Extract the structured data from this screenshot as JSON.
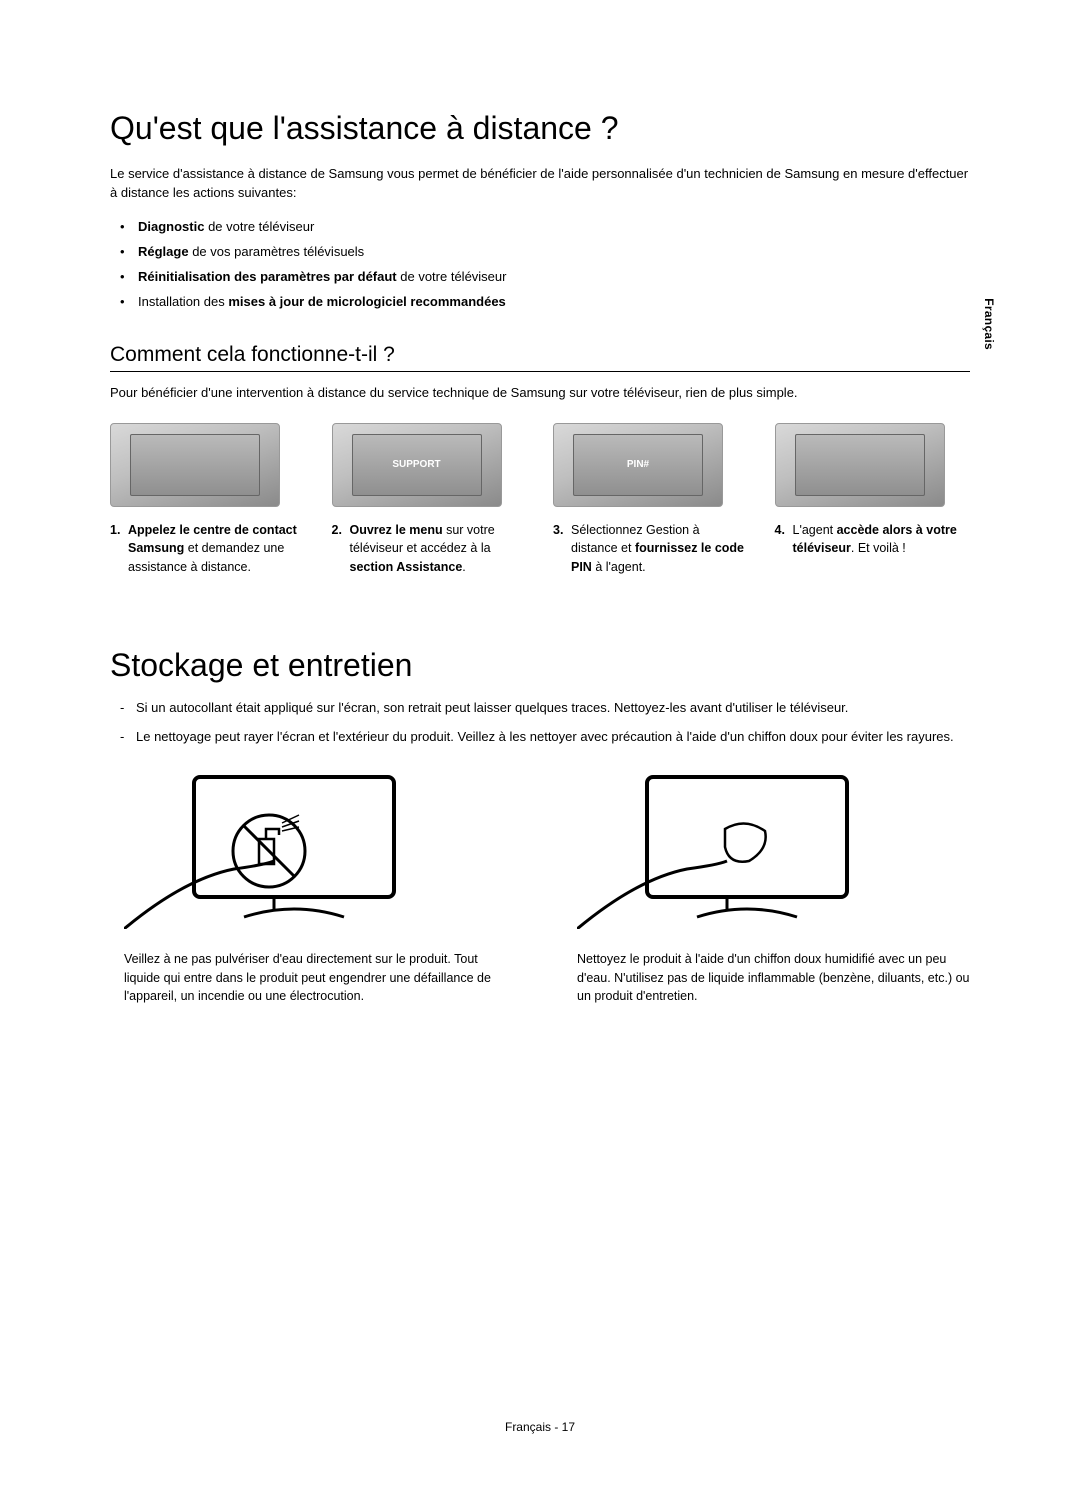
{
  "page": {
    "language_tab": "Français",
    "footer": "Français - 17"
  },
  "section1": {
    "title": "Qu'est que l'assistance à distance ?",
    "intro": "Le service d'assistance à distance de Samsung vous permet de bénéficier de l'aide personnalisée d'un technicien de Samsung en mesure d'effectuer à distance les actions suivantes:",
    "bullets": [
      {
        "bold": "Diagnostic",
        "rest": " de votre téléviseur"
      },
      {
        "bold": "Réglage",
        "rest": " de vos paramètres télévisuels"
      },
      {
        "bold": "Réinitialisation des paramètres par défaut",
        "rest": " de votre téléviseur"
      },
      {
        "prefix": "Installation des ",
        "bold": "mises à jour de micrologiciel recommandées",
        "rest": ""
      }
    ],
    "sub_title": "Comment cela fonctionne-t-il ?",
    "sub_intro": "Pour bénéficier d'une intervention à distance du service technique de Samsung sur votre téléviseur, rien de plus simple.",
    "steps": [
      {
        "num": "1.",
        "img_label": "laptop-call-icon",
        "text_parts": [
          {
            "bold": true,
            "t": "Appelez le centre de contact Samsung"
          },
          {
            "bold": false,
            "t": " et demandez une assistance à distance."
          }
        ]
      },
      {
        "num": "2.",
        "img_label": "tv-menu-support-icon",
        "img_caption": "SUPPORT",
        "text_parts": [
          {
            "bold": true,
            "t": "Ouvrez le menu"
          },
          {
            "bold": false,
            "t": " sur votre téléviseur et accédez à la "
          },
          {
            "bold": true,
            "t": "section Assistance"
          },
          {
            "bold": false,
            "t": "."
          }
        ]
      },
      {
        "num": "3.",
        "img_label": "tv-pin-agent-icon",
        "img_caption": "PIN#",
        "text_parts": [
          {
            "bold": false,
            "t": "Sélectionnez Gestion à distance et "
          },
          {
            "bold": true,
            "t": "fournissez le code PIN"
          },
          {
            "bold": false,
            "t": " à l'agent."
          }
        ]
      },
      {
        "num": "4.",
        "img_label": "tv-agent-access-icon",
        "text_parts": [
          {
            "bold": false,
            "t": "L'agent "
          },
          {
            "bold": true,
            "t": "accède alors à votre téléviseur"
          },
          {
            "bold": false,
            "t": ". Et voilà !"
          }
        ]
      }
    ]
  },
  "section2": {
    "title": "Stockage et entretien",
    "dash_items": [
      "Si un autocollant était appliqué sur l'écran, son retrait peut laisser quelques traces. Nettoyez-les avant d'utiliser le téléviseur.",
      "Le nettoyage peut rayer l'écran et l'extérieur du produit. Veillez à les nettoyer avec précaution à l'aide d'un chiffon doux pour éviter les rayures."
    ],
    "care": [
      {
        "img_name": "tv-spray-prohibited-icon",
        "caption": "Veillez à ne pas pulvériser d'eau directement sur le produit. Tout liquide qui entre dans le produit peut engendrer une défaillance de l'appareil, un incendie ou une électrocution."
      },
      {
        "img_name": "tv-wipe-cloth-icon",
        "caption": "Nettoyez le produit à l'aide d'un chiffon doux humidifié avec un peu d'eau. N'utilisez pas de liquide inflammable (benzène, diluants, etc.) ou un produit d'entretien."
      }
    ]
  },
  "style": {
    "text_color": "#000000",
    "background_color": "#ffffff",
    "body_fontsize_pt": 10,
    "h1_fontsize_pt": 24,
    "subhead_fontsize_pt": 16
  }
}
